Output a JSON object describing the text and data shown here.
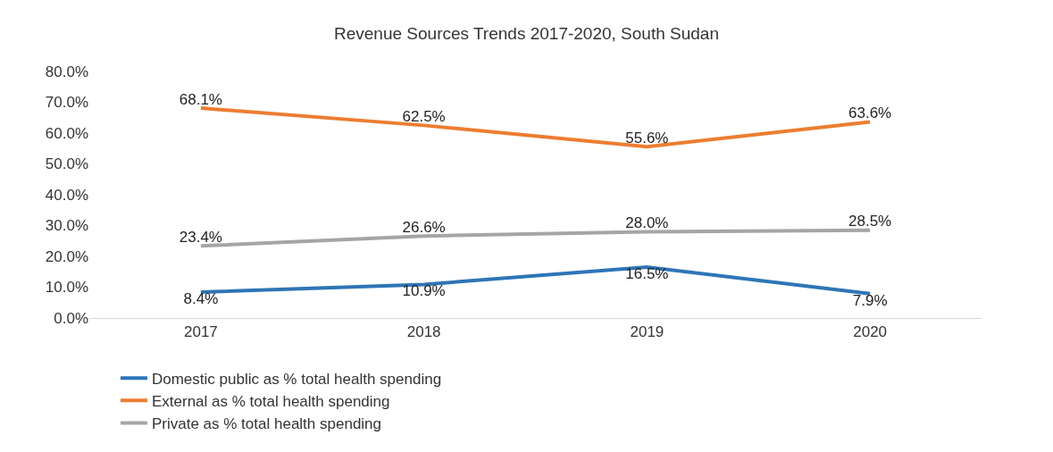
{
  "chart_data": {
    "type": "line",
    "title": "Revenue Sources Trends 2017-2020, South Sudan",
    "categories": [
      "2017",
      "2018",
      "2019",
      "2020"
    ],
    "series": [
      {
        "name": "Domestic public as % total health spending",
        "color": "#2e75b6",
        "values": [
          8.4,
          10.9,
          16.5,
          7.9
        ],
        "value_labels": [
          "8.4%",
          "10.9%",
          "16.5%",
          "7.9%"
        ]
      },
      {
        "name": "External as % total health spending",
        "color": "#ed7d31",
        "values": [
          68.1,
          62.5,
          55.6,
          63.6
        ],
        "value_labels": [
          "68.1%",
          "62.5%",
          "55.6%",
          "63.6%"
        ]
      },
      {
        "name": "Private as % total health spending",
        "color": "#a5a5a5",
        "values": [
          23.4,
          26.6,
          28.0,
          28.5
        ],
        "value_labels": [
          "23.4%",
          "26.6%",
          "28.0%",
          "28.5%"
        ]
      }
    ],
    "ylim": [
      0,
      80
    ],
    "yticks": [
      {
        "value": 0,
        "label": "0.0%"
      },
      {
        "value": 10,
        "label": "10.0%"
      },
      {
        "value": 20,
        "label": "20.0%"
      },
      {
        "value": 30,
        "label": "30.0%"
      },
      {
        "value": 40,
        "label": "40.0%"
      },
      {
        "value": 50,
        "label": "50.0%"
      },
      {
        "value": 60,
        "label": "60.0%"
      },
      {
        "value": 70,
        "label": "70.0%"
      },
      {
        "value": 80,
        "label": "80.0%"
      }
    ],
    "legend": "bottom",
    "marker": "none",
    "line_style": "solid"
  }
}
